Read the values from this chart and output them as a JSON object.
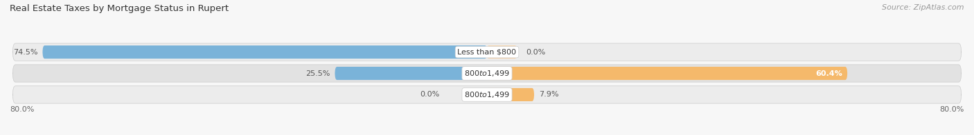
{
  "title": "Real Estate Taxes by Mortgage Status in Rupert",
  "source": "Source: ZipAtlas.com",
  "rows": [
    {
      "label": "Less than $800",
      "without_mortgage": 74.5,
      "with_mortgage": 0.0,
      "without_label": "74.5%",
      "with_label": "0.0%"
    },
    {
      "label": "$800 to $1,499",
      "without_mortgage": 25.5,
      "with_mortgage": 60.4,
      "without_label": "25.5%",
      "with_label": "60.4%"
    },
    {
      "label": "$800 to $1,499",
      "without_mortgage": 0.0,
      "with_mortgage": 7.9,
      "without_label": "0.0%",
      "with_label": "7.9%"
    }
  ],
  "axis_max": 80.0,
  "axis_left_label": "80.0%",
  "axis_right_label": "80.0%",
  "color_without": "#7ab3d9",
  "color_with": "#f5b96b",
  "color_with_light": "#f9d4a8",
  "title_fontsize": 9.5,
  "source_fontsize": 8,
  "label_fontsize": 8,
  "bar_label_fontsize": 8,
  "tick_fontsize": 8,
  "bar_height": 0.62,
  "row_bg_even": "#ececec",
  "row_bg_odd": "#e2e2e2",
  "bg_color": "#f7f7f7"
}
